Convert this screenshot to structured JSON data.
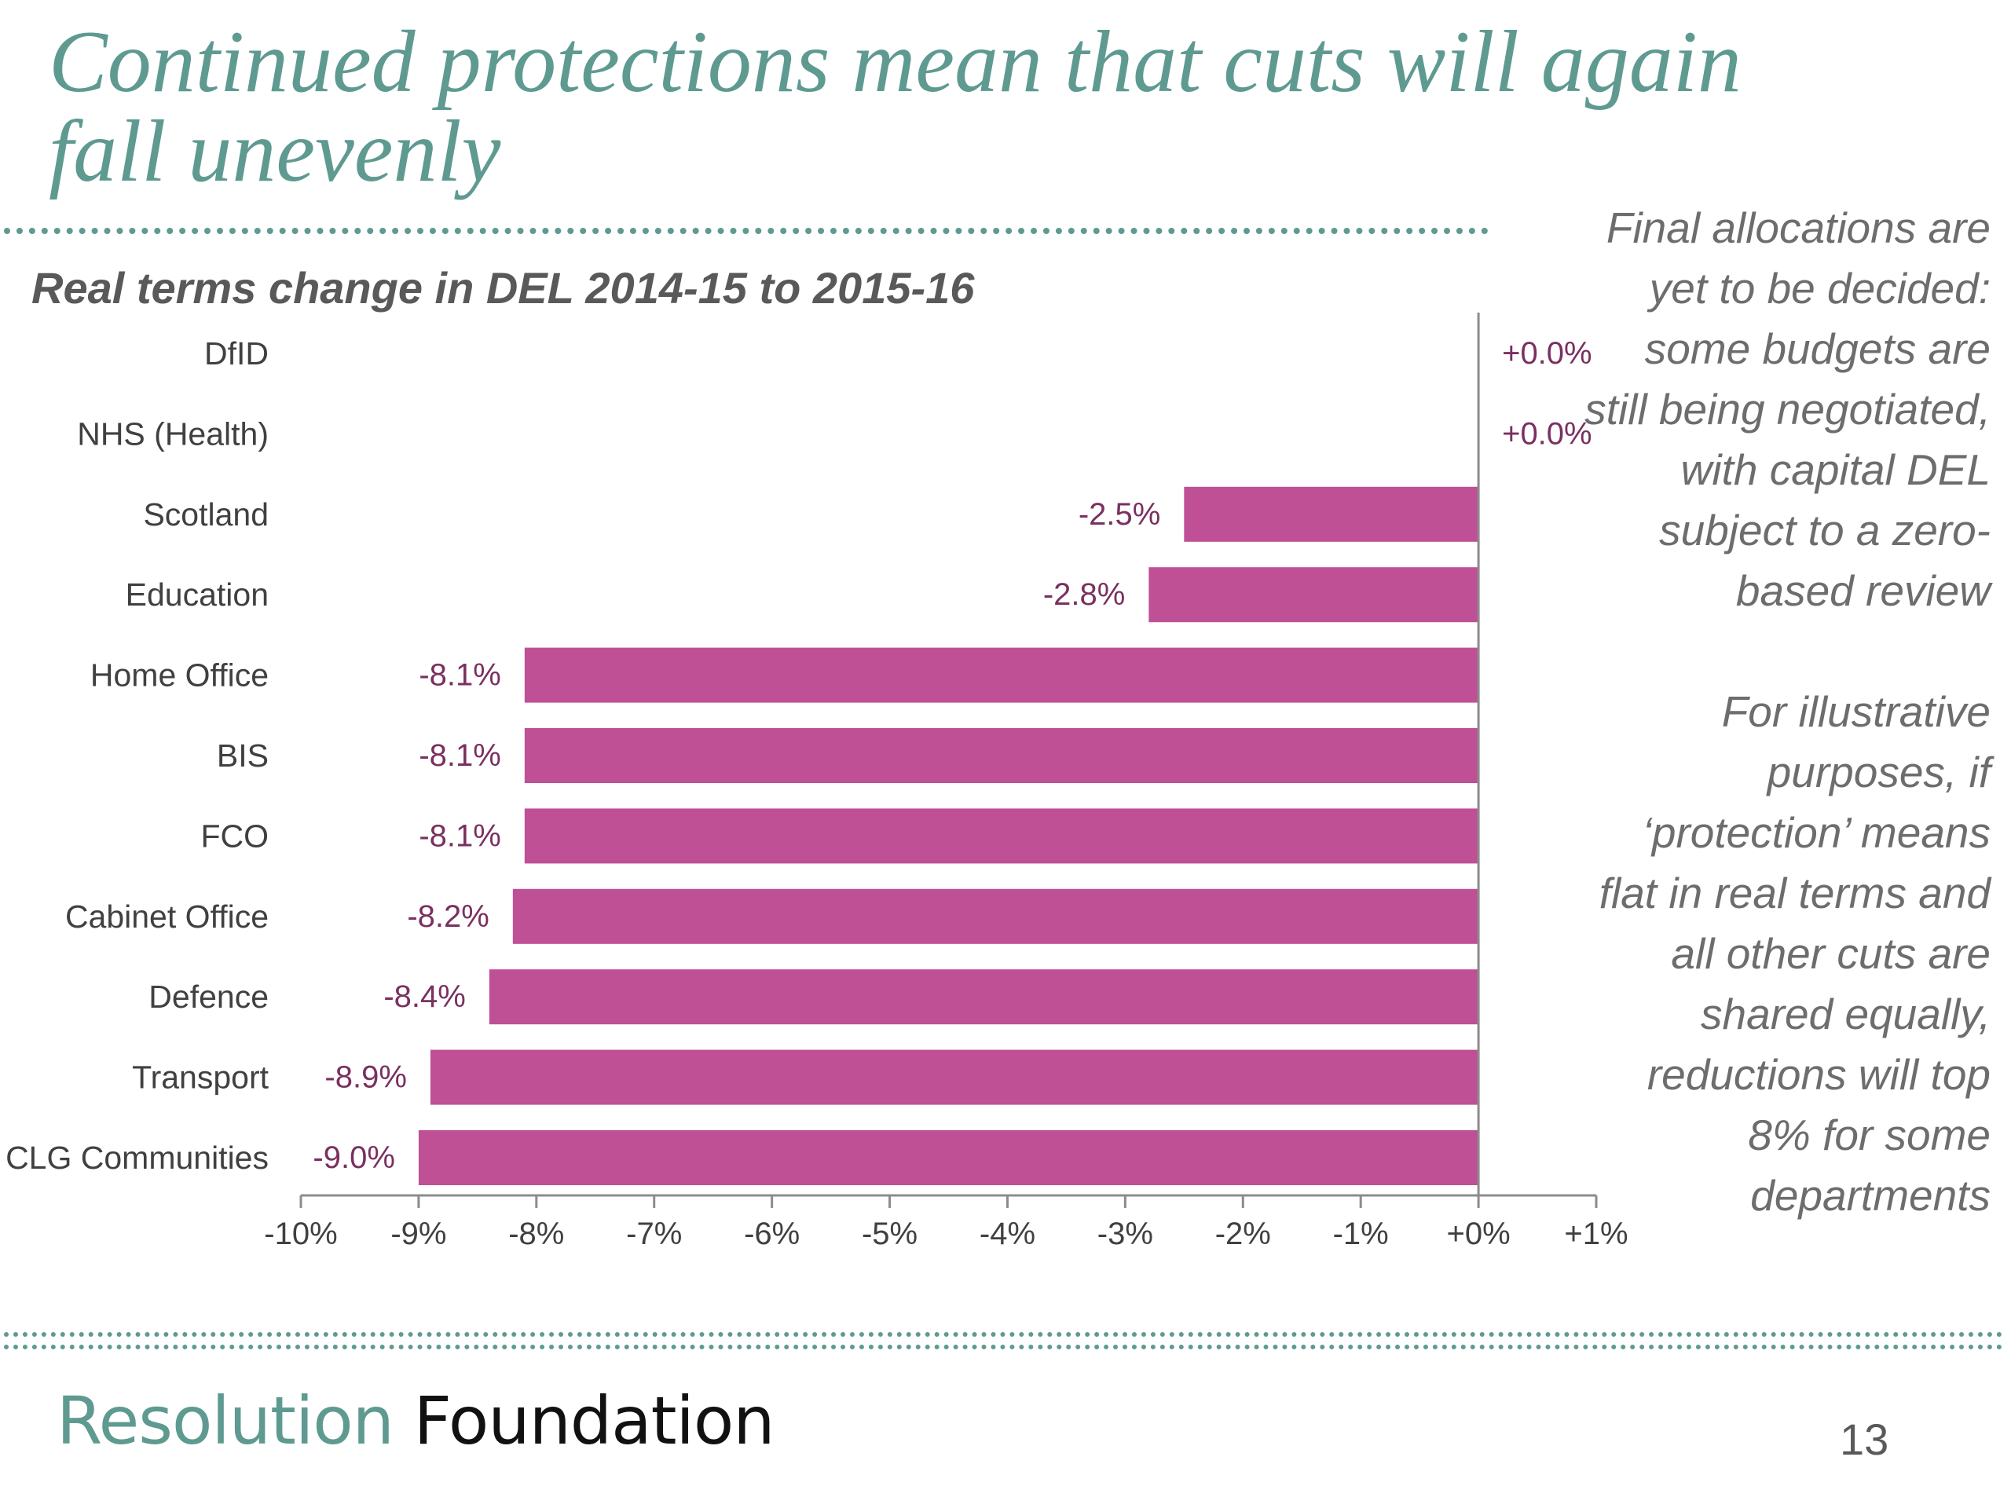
{
  "slide": {
    "title": "Continued protections mean that cuts will again fall unevenly",
    "side_note": [
      "Final allocations are yet to be decided: some budgets are still being negotiated, with capital DEL subject to a zero-based review",
      "For illustrative purposes, if ‘protection’ means flat in real terms and all other cuts are shared equally, reductions will top 8% for some departments"
    ],
    "brand_light": "Resolution ",
    "brand_dark": "Foundation",
    "page_number": "13"
  },
  "colors": {
    "accent": "#5f9a91",
    "bar": "#bf5096",
    "data_label": "#7a3060",
    "text": "#404040"
  },
  "chart_data": {
    "type": "bar",
    "orientation": "horizontal",
    "title": "Real terms change in DEL 2014-15 to 2015-16",
    "categories": [
      "DfID",
      "NHS (Health)",
      "Scotland",
      "Education",
      "Home Office",
      "BIS",
      "FCO",
      "Cabinet Office",
      "Defence",
      "Transport",
      "CLG Communities"
    ],
    "values": [
      0.0,
      0.0,
      -2.5,
      -2.8,
      -8.1,
      -8.1,
      -8.1,
      -8.2,
      -8.4,
      -8.9,
      -9.0
    ],
    "data_labels": [
      "+0.0%",
      "+0.0%",
      "-2.5%",
      "-2.8%",
      "-8.1%",
      "-8.1%",
      "-8.1%",
      "-8.2%",
      "-8.4%",
      "-8.9%",
      "-9.0%"
    ],
    "xlim": [
      -10,
      1
    ],
    "x_ticks": [
      -10,
      -9,
      -8,
      -7,
      -6,
      -5,
      -4,
      -3,
      -2,
      -1,
      0,
      1
    ],
    "x_tick_labels": [
      "-10%",
      "-9%",
      "-8%",
      "-7%",
      "-6%",
      "-5%",
      "-4%",
      "-3%",
      "-2%",
      "-1%",
      "+0%",
      "+1%"
    ],
    "grid": false,
    "legend": "none"
  }
}
